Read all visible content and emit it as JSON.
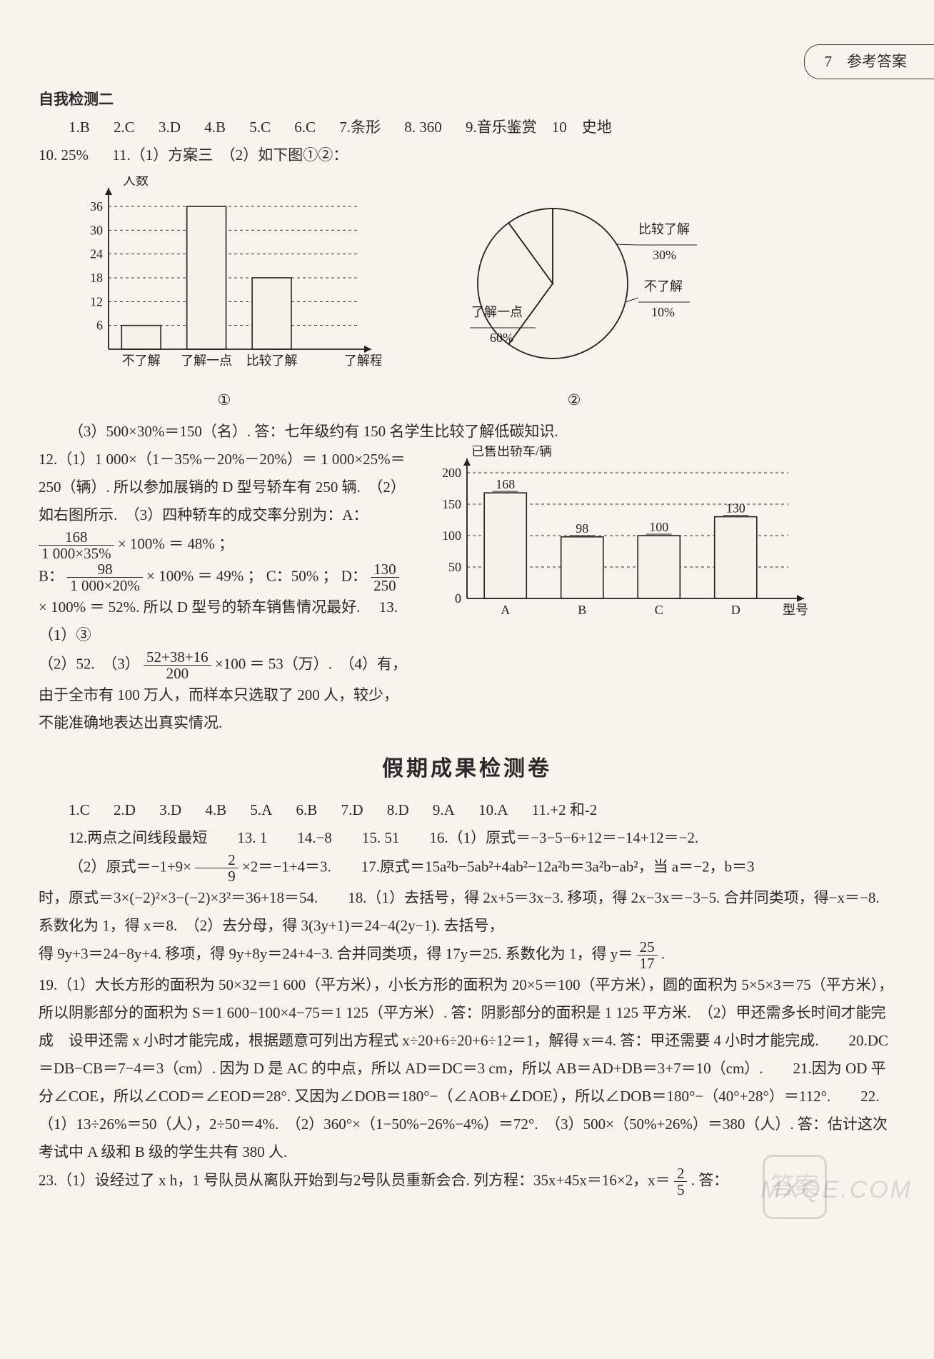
{
  "header": {
    "label": "7　参考答案"
  },
  "self_test": {
    "title": "自我检测二",
    "row1": [
      "1.B",
      "2.C",
      "3.D",
      "4.B",
      "5.C",
      "6.C",
      "7.条形",
      "8. 360",
      "9.音乐鉴赏　10　史地"
    ],
    "row2": [
      "10. 25%",
      "11.（1）方案三　（2）如下图①②："
    ]
  },
  "bar_chart_1": {
    "type": "bar",
    "y_title": "人数",
    "x_title": "了解程度",
    "ylim": [
      0,
      36
    ],
    "ytick_step": 6,
    "y_ticks": [
      6,
      12,
      18,
      24,
      30,
      36
    ],
    "categories": [
      "不了解",
      "了解一点",
      "比较了解"
    ],
    "values": [
      6,
      36,
      18
    ],
    "bar_color": "#f6f2ea",
    "bar_border": "#222222",
    "grid_dash": "4,4",
    "axis_color": "#222222",
    "label_fontsize": 18,
    "bar_width": 0.6,
    "figure_label": "①"
  },
  "pie_chart": {
    "type": "pie",
    "slices": [
      {
        "label": "了解一点",
        "percent_label": "60%",
        "value": 60,
        "fill": "#f6f2ea"
      },
      {
        "label": "比较了解",
        "percent_label": "30%",
        "value": 30,
        "fill": "#f6f2ea"
      },
      {
        "label": "不了解",
        "percent_label": "10%",
        "value": 10,
        "fill": "#f6f2ea"
      }
    ],
    "border": "#222222",
    "start_angle_deg": 90,
    "label_fontsize": 18,
    "figure_label": "②"
  },
  "q11_3": "（3）500×30%＝150（名）. 答：七年级约有 150 名学生比较了解低碳知识.",
  "q12_intro": "12.（1）1 000×（1－35%－20%－20%）＝ 1 000×25%＝250（辆）. 所以参加展销的 D 型号轿车有 250 辆.　（2）如右图所示.　（3）四种轿车的成交率分别为：A：",
  "q12_fracA": {
    "num": "168",
    "den": "1 000×35%"
  },
  "q12_afterA": " × 100% ＝ 48% ；",
  "q12_B_prefix": "B：",
  "q12_fracB": {
    "num": "98",
    "den": "1 000×20%"
  },
  "q12_afterB": " × 100% ＝ 49% ； C：50% ； D：",
  "q12_fracD": {
    "num": "130",
    "den": "250"
  },
  "q12_afterD": " × 100% ＝ 52%. 所以 D 型号的轿车销售情况最好.",
  "q13_a": "　13.（1）③",
  "q13_b_prefix": "（2）52.　（3）",
  "q13_frac": {
    "num": "52+38+16",
    "den": "200"
  },
  "q13_b_suffix": "×100 ＝ 53（万）.　（4）有，由于全市有 100 万人，而样本只选取了 200 人，较少，不能准确地表达出真实情况.",
  "bar_chart_2": {
    "type": "bar",
    "y_title": "已售出轿车/辆",
    "x_title": "型号",
    "ylim": [
      0,
      200
    ],
    "ytick_step": 50,
    "y_ticks": [
      0,
      50,
      100,
      150,
      200
    ],
    "categories": [
      "A",
      "B",
      "C",
      "D"
    ],
    "values": [
      168,
      98,
      100,
      130
    ],
    "value_labels": [
      "168",
      "98",
      "100",
      "130"
    ],
    "bar_color": "#f6f2ea",
    "bar_border": "#222222",
    "grid_dash": "4,4",
    "axis_color": "#222222",
    "label_fontsize": 18,
    "bar_width": 0.55
  },
  "holiday": {
    "title": "假期成果检测卷",
    "row1": [
      "1.C",
      "2.D",
      "3.D",
      "4.B",
      "5.A",
      "6.B",
      "7.D",
      "8.D",
      "9.A",
      "10.A",
      "11.+2 和-2"
    ],
    "line12": "12.两点之间线段最短　　13. 1　　14.−8　　15. 51　　16.（1）原式＝−3−5−6+12＝−14+12＝−2.",
    "line16b_prefix": "（2）原式＝−1+9×",
    "frac_2_9": {
      "num": "2",
      "den": "9"
    },
    "line16b_suffix": "×2＝−1+4＝3.　　17.原式＝15a²b−5ab²+4ab²−12a²b＝3a²b−ab²，当 a＝−2，b＝3",
    "line17": "时，原式＝3×(−2)²×3−(−2)×3²＝36+18＝54.　　18.（1）去括号，得 2x+5＝3x−3. 移项，得 2x−3x＝−3−5. 合并同类项，得−x＝−8. 系数化为 1，得 x＝8.　（2）去分母，得 3(3y+1)＝24−4(2y−1). 去括号，",
    "line18_prefix": "得 9y+3＝24−8y+4. 移项，得 9y+8y＝24+4−3. 合并同类项，得 17y＝25. 系数化为 1，得 y＝",
    "frac_25_17": {
      "num": "25",
      "den": "17"
    },
    "line18_suffix": ".",
    "p19_21": "19.（1）大长方形的面积为 50×32＝1 600（平方米），小长方形的面积为 20×5＝100（平方米），圆的面积为 5×5×3＝75（平方米），所以阴影部分的面积为 S＝1 600−100×4−75＝1 125（平方米）. 答：阴影部分的面积是 1 125 平方米.　（2）甲还需多长时间才能完成　设甲还需 x 小时才能完成，根据题意可列出方程式 x÷20+6÷20+6÷12＝1，解得 x＝4. 答：甲还需要 4 小时才能完成.　　20.DC＝DB−CB＝7−4＝3（cm）. 因为 D 是 AC 的中点，所以 AD＝DC＝3 cm，所以 AB＝AD+DB＝3+7＝10（cm）.　　21.因为 OD 平分∠COE，所以∠COD＝∠EOD＝28°. 又因为∠DOB＝180°−（∠AOB+∠DOE），所以∠DOB＝180°−（40°+28°）＝112°.　　22.（1）13÷26%＝50（人），2÷50＝4%.　（2）360°×（1−50%−26%−4%）＝72°.　（3）500×（50%+26%）＝380（人）. 答：估计这次考试中 A 级和 B 级的学生共有 380 人.",
    "p23_prefix": "23.（1）设经过了 x h，1 号队员从离队开始到与2号队员重新会合. 列方程：35x+45x＝16×2，x＝",
    "frac_2_5": {
      "num": "2",
      "den": "5"
    },
    "p23_suffix": ". 答："
  },
  "watermark": "MXQE.COM",
  "badge_text": "答案"
}
